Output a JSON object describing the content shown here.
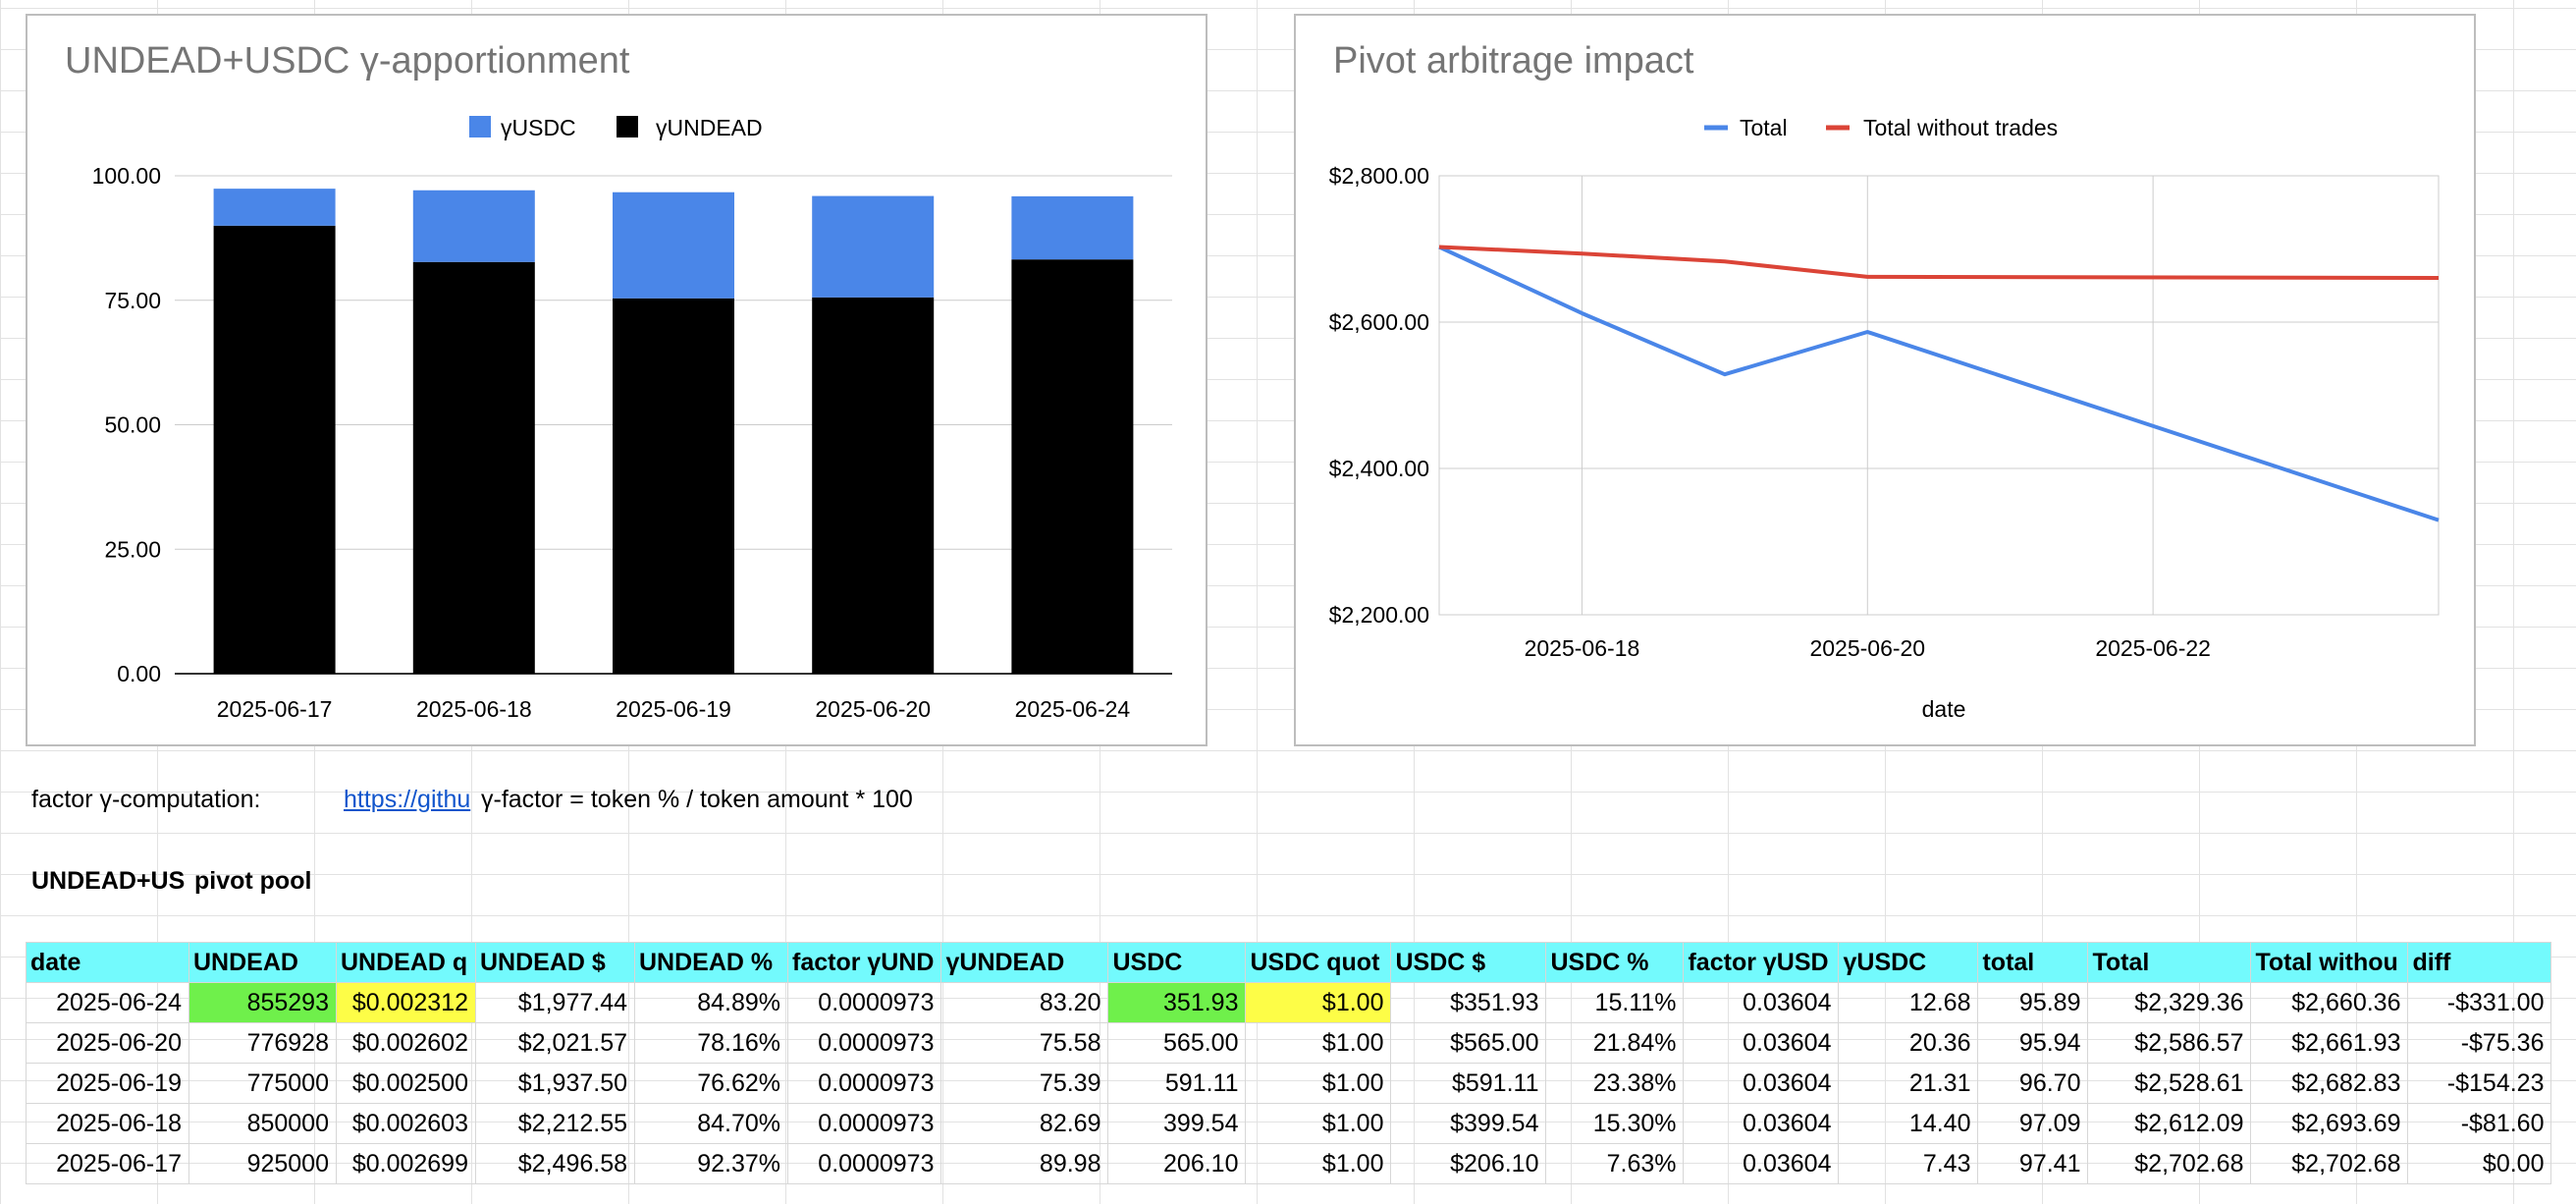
{
  "colors": {
    "blue": "#4a86e8",
    "red": "#db4437",
    "black": "#000000",
    "header_bg": "#73fafd",
    "green_cell": "#6ff04b",
    "yellow_cell": "#fdfd47"
  },
  "chart_data": [
    {
      "type": "bar",
      "stacked": true,
      "title": "UNDEAD+USDC γ-apportionment",
      "categories": [
        "2025-06-17",
        "2025-06-18",
        "2025-06-19",
        "2025-06-20",
        "2025-06-24"
      ],
      "series": [
        {
          "name": "γUNDEAD",
          "values": [
            89.98,
            82.69,
            75.39,
            75.58,
            83.2
          ],
          "color": "#000000"
        },
        {
          "name": "γUSDC",
          "values": [
            7.43,
            14.4,
            21.31,
            20.36,
            12.68
          ],
          "color": "#4a86e8"
        }
      ],
      "legend": [
        "γUSDC",
        "γUNDEAD"
      ],
      "ylim": [
        0,
        100
      ],
      "yticks": [
        0,
        25,
        50,
        75,
        100
      ],
      "ytick_labels": [
        "0.00",
        "25.00",
        "50.00",
        "75.00",
        "100.00"
      ],
      "xlabel": "",
      "ylabel": ""
    },
    {
      "type": "line",
      "title": "Pivot arbitrage impact",
      "x": [
        "2025-06-17",
        "2025-06-18",
        "2025-06-19",
        "2025-06-20",
        "2025-06-24"
      ],
      "series": [
        {
          "name": "Total",
          "values": [
            2702.68,
            2612.09,
            2528.61,
            2586.57,
            2329.36
          ],
          "color": "#4a86e8"
        },
        {
          "name": "Total without trades",
          "values": [
            2702.68,
            2693.69,
            2682.83,
            2661.93,
            2660.36
          ],
          "color": "#db4437"
        }
      ],
      "xticks": [
        "2025-06-18",
        "2025-06-20",
        "2025-06-22"
      ],
      "ylim": [
        2200,
        2800
      ],
      "yticks": [
        2200,
        2400,
        2600,
        2800
      ],
      "ytick_labels": [
        "$2,200.00",
        "$2,400.00",
        "$2,600.00",
        "$2,800.00"
      ],
      "xlabel": "date",
      "ylabel": ""
    }
  ],
  "factor_row": {
    "label": "factor γ-computation:",
    "link_text": "https://githu",
    "formula": "γ-factor = token % / token amount * 100"
  },
  "pool_title": {
    "name": "UNDEAD+US",
    "suffix": "pivot pool"
  },
  "table": {
    "headers": [
      "date",
      "UNDEAD",
      "UNDEAD q",
      "UNDEAD $",
      "UNDEAD %",
      "factor γUND",
      "γUNDEAD",
      "USDC",
      "USDC quot",
      "USDC $",
      "USDC %",
      "factor γUSD",
      "γUSDC",
      "total",
      "Total",
      "Total withou",
      "diff"
    ],
    "rows": [
      [
        "2025-06-24",
        "855293",
        "$0.002312",
        "$1,977.44",
        "84.89%",
        "0.0000973",
        "83.20",
        "351.93",
        "$1.00",
        "$351.93",
        "15.11%",
        "0.03604",
        "12.68",
        "95.89",
        "$2,329.36",
        "$2,660.36",
        "-$331.00"
      ],
      [
        "2025-06-20",
        "776928",
        "$0.002602",
        "$2,021.57",
        "78.16%",
        "0.0000973",
        "75.58",
        "565.00",
        "$1.00",
        "$565.00",
        "21.84%",
        "0.03604",
        "20.36",
        "95.94",
        "$2,586.57",
        "$2,661.93",
        "-$75.36"
      ],
      [
        "2025-06-19",
        "775000",
        "$0.002500",
        "$1,937.50",
        "76.62%",
        "0.0000973",
        "75.39",
        "591.11",
        "$1.00",
        "$591.11",
        "23.38%",
        "0.03604",
        "21.31",
        "96.70",
        "$2,528.61",
        "$2,682.83",
        "-$154.23"
      ],
      [
        "2025-06-18",
        "850000",
        "$0.002603",
        "$2,212.55",
        "84.70%",
        "0.0000973",
        "82.69",
        "399.54",
        "$1.00",
        "$399.54",
        "15.30%",
        "0.03604",
        "14.40",
        "97.09",
        "$2,612.09",
        "$2,693.69",
        "-$81.60"
      ],
      [
        "2025-06-17",
        "925000",
        "$0.002699",
        "$2,496.58",
        "92.37%",
        "0.0000973",
        "89.98",
        "206.10",
        "$1.00",
        "$206.10",
        "7.63%",
        "0.03604",
        "7.43",
        "97.41",
        "$2,702.68",
        "$2,702.68",
        "$0.00"
      ]
    ]
  }
}
